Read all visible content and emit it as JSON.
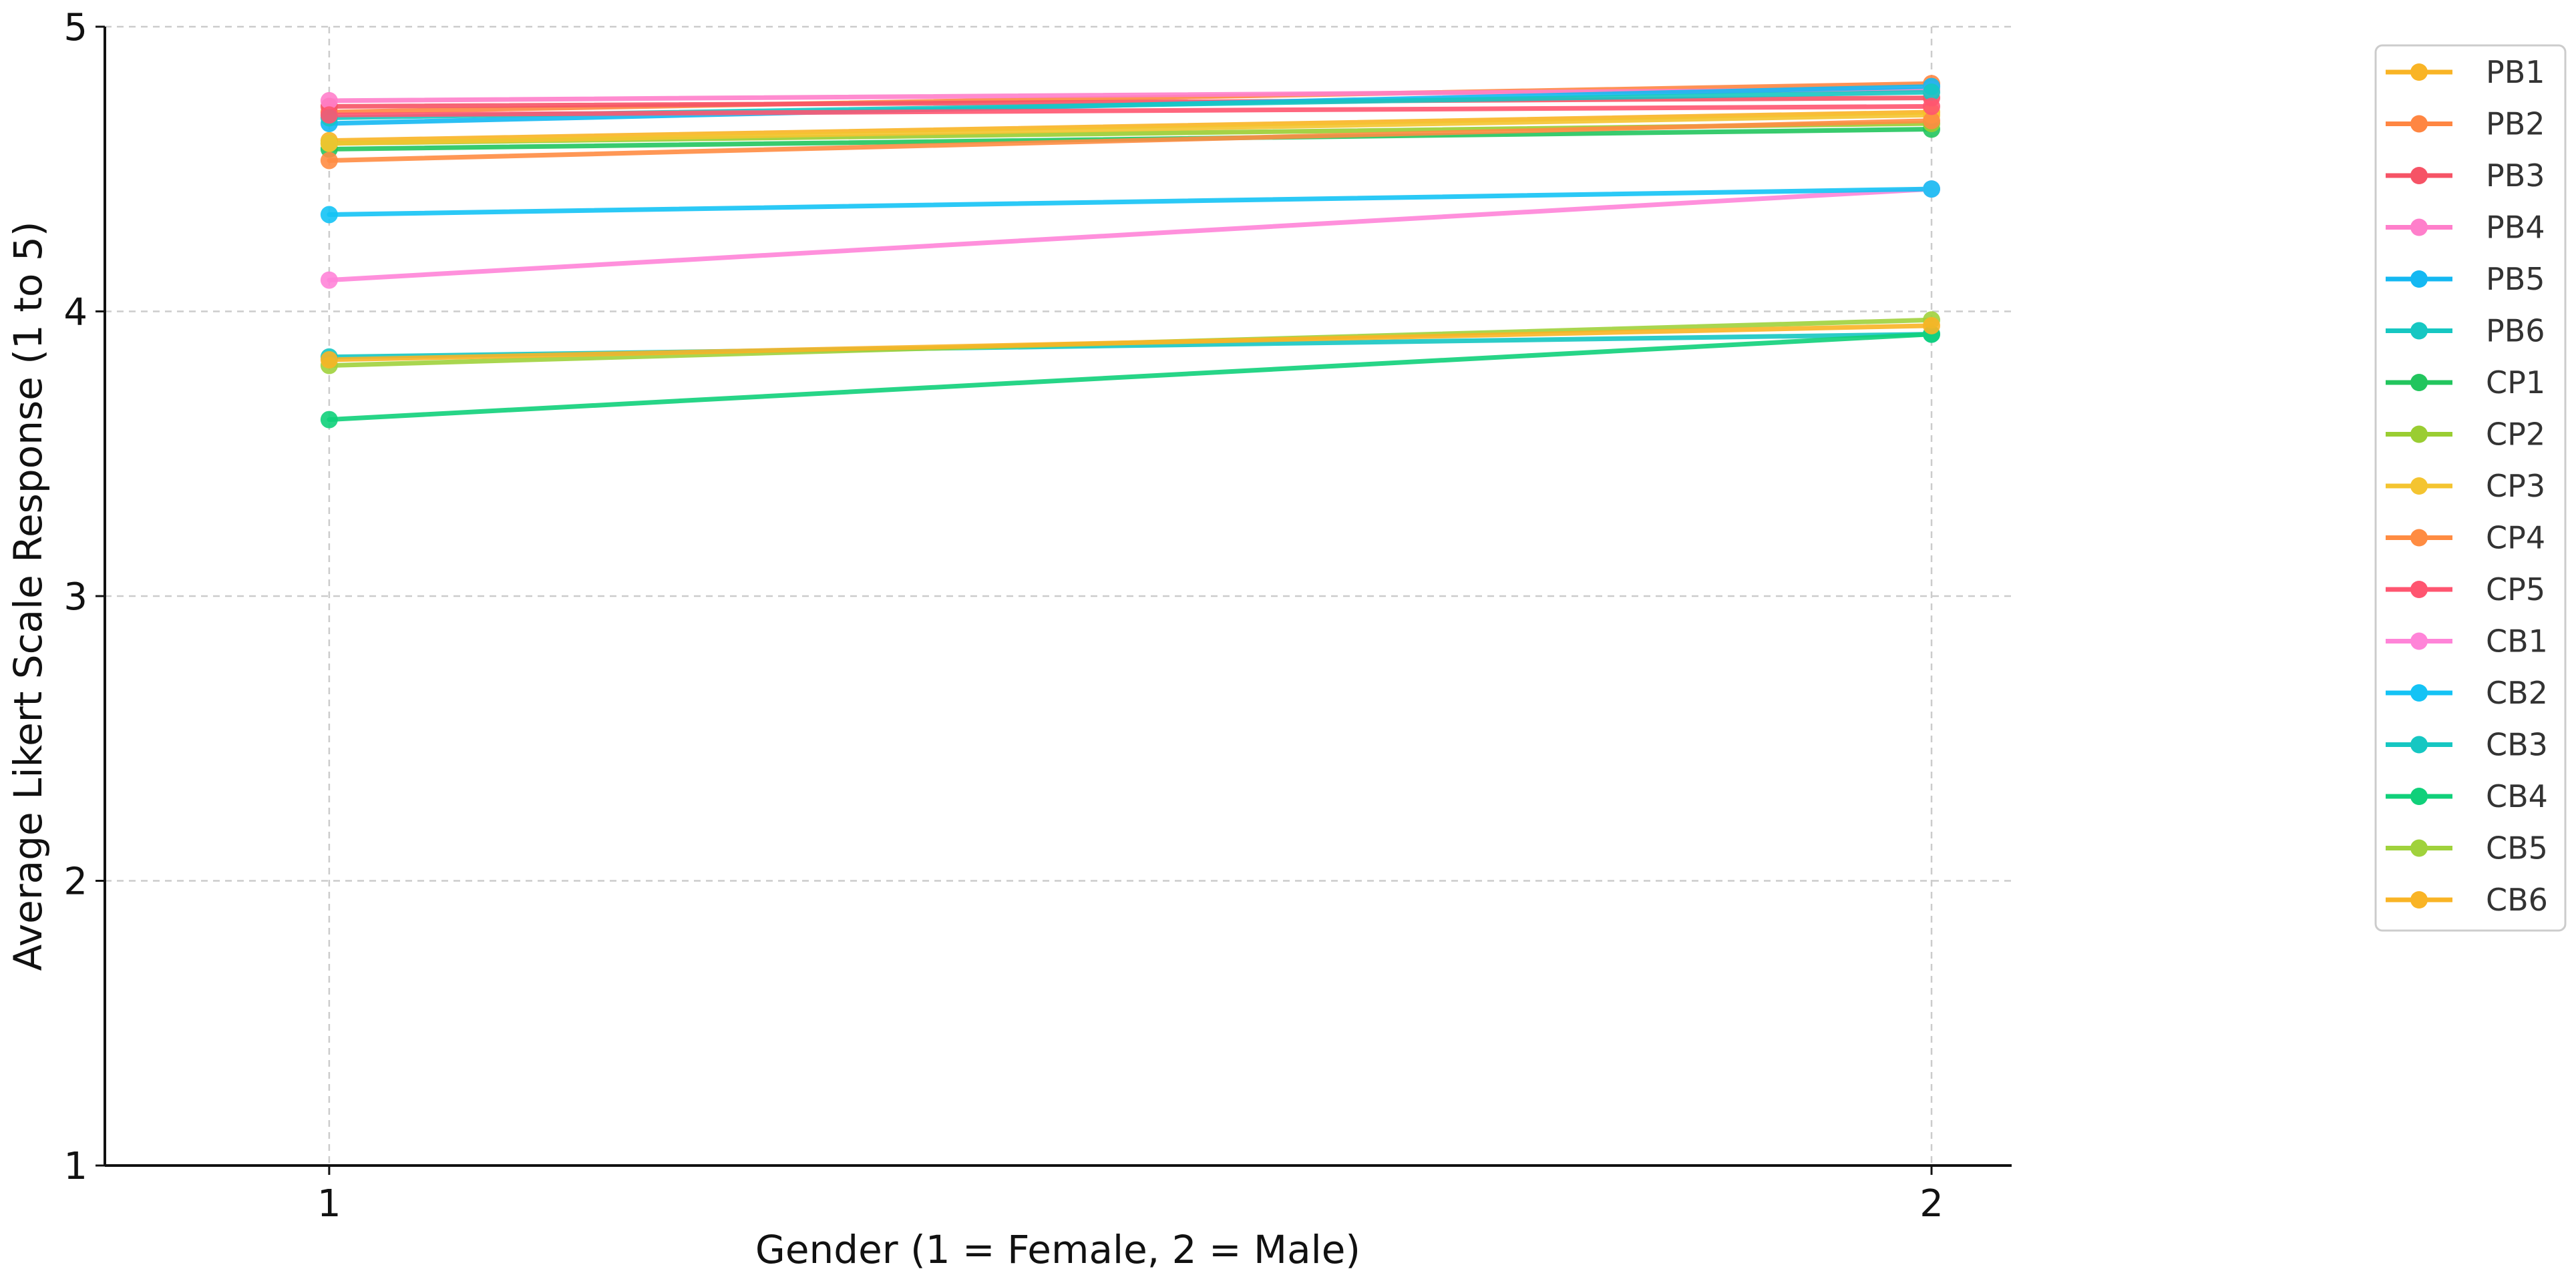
{
  "chart_data": {
    "type": "line",
    "title": "",
    "xlabel": "Gender (1 = Female, 2 = Male)",
    "ylabel": "Average Likert Scale Response (1 to 5)",
    "x": [
      1,
      2
    ],
    "xticks": [
      "1",
      "2"
    ],
    "xlim": [
      0.86,
      2.05
    ],
    "yticks": [
      "1",
      "2",
      "3",
      "4",
      "5"
    ],
    "ylim": [
      1,
      5
    ],
    "grid": true,
    "legend_position": "right-outside-top",
    "series": [
      {
        "name": "PB1",
        "color": "#F9B425",
        "values": [
          4.6,
          4.7
        ]
      },
      {
        "name": "PB2",
        "color": "#FF8642",
        "values": [
          4.7,
          4.8
        ]
      },
      {
        "name": "PB3",
        "color": "#F65366",
        "values": [
          4.72,
          4.75
        ]
      },
      {
        "name": "PB4",
        "color": "#FF7FCB",
        "values": [
          4.74,
          4.78
        ]
      },
      {
        "name": "PB5",
        "color": "#14B8F2",
        "values": [
          4.66,
          4.79
        ]
      },
      {
        "name": "PB6",
        "color": "#16C7C2",
        "values": [
          4.68,
          4.77
        ]
      },
      {
        "name": "CP1",
        "color": "#22C55E",
        "values": [
          4.57,
          4.64
        ]
      },
      {
        "name": "CP2",
        "color": "#9ACD32",
        "values": [
          4.59,
          4.66
        ]
      },
      {
        "name": "CP3",
        "color": "#F4C430",
        "values": [
          4.59,
          4.69
        ]
      },
      {
        "name": "CP4",
        "color": "#FF8C42",
        "values": [
          4.53,
          4.67
        ]
      },
      {
        "name": "CP5",
        "color": "#FF5570",
        "values": [
          4.69,
          4.72
        ]
      },
      {
        "name": "CB1",
        "color": "#FF84D8",
        "values": [
          4.11,
          4.43
        ]
      },
      {
        "name": "CB2",
        "color": "#14C3F5",
        "values": [
          4.34,
          4.43
        ]
      },
      {
        "name": "CB3",
        "color": "#16C7C2",
        "values": [
          3.84,
          3.92
        ]
      },
      {
        "name": "CB4",
        "color": "#10D07A",
        "values": [
          3.62,
          3.92
        ]
      },
      {
        "name": "CB5",
        "color": "#A0D23C",
        "values": [
          3.81,
          3.97
        ]
      },
      {
        "name": "CB6",
        "color": "#F9B425",
        "values": [
          3.83,
          3.95
        ]
      }
    ]
  }
}
